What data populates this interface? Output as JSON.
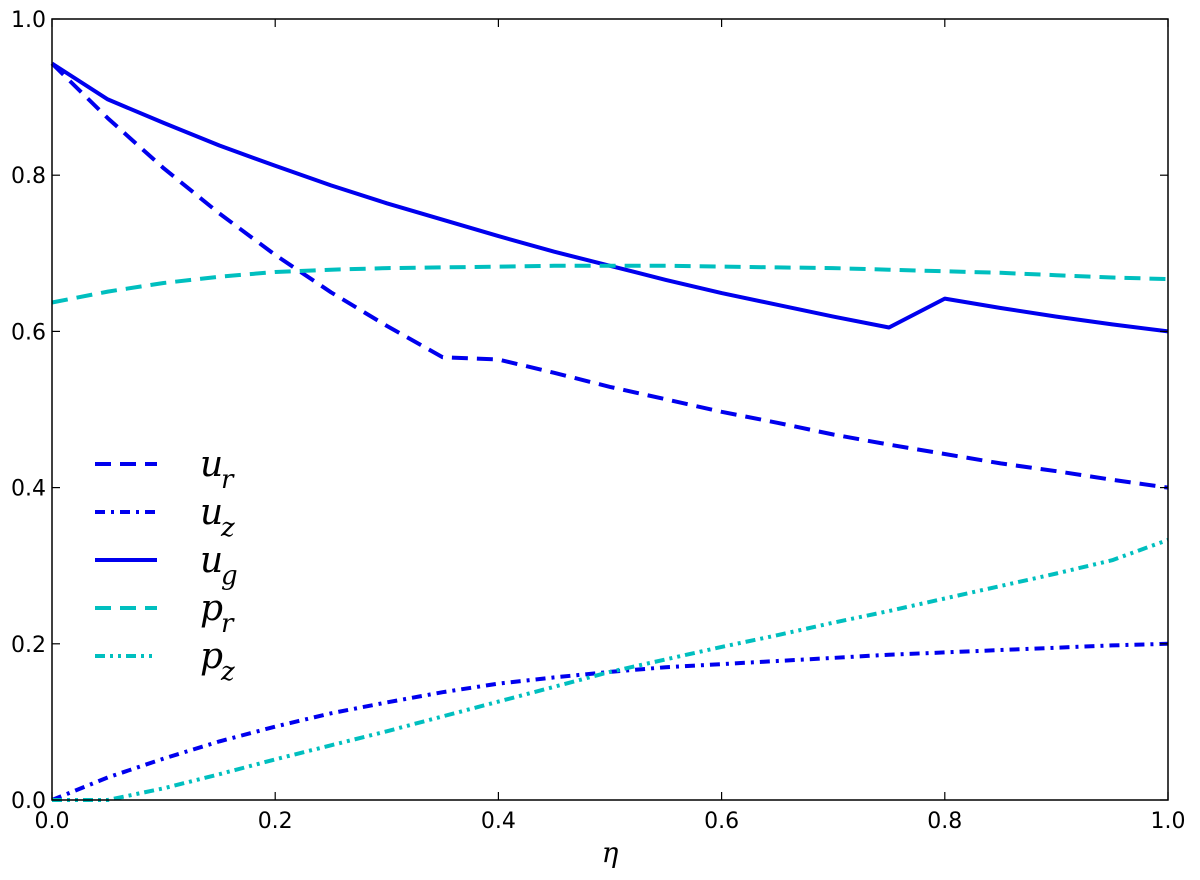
{
  "chart_data": {
    "type": "line",
    "title": "",
    "xlabel": "η",
    "ylabel": "",
    "xlim": [
      0.0,
      1.0
    ],
    "ylim": [
      0.0,
      1.0
    ],
    "xticks": [
      "0.0",
      "0.2",
      "0.4",
      "0.6",
      "0.8",
      "1.0"
    ],
    "yticks": [
      "0.0",
      "0.2",
      "0.4",
      "0.6",
      "0.8",
      "1.0"
    ],
    "grid": false,
    "legend_position": "center-left",
    "x": [
      0.0,
      0.05,
      0.1,
      0.15,
      0.2,
      0.25,
      0.3,
      0.35,
      0.4,
      0.45,
      0.5,
      0.55,
      0.6,
      0.65,
      0.7,
      0.75,
      0.8,
      0.85,
      0.9,
      0.95,
      1.0
    ],
    "series": [
      {
        "name": "u_r",
        "label_main": "u",
        "label_sub": "r",
        "color": "#0000ee",
        "style": "dashed",
        "values": [
          0.943,
          0.873,
          0.809,
          0.751,
          0.698,
          0.65,
          0.607,
          0.567,
          0.564,
          0.547,
          0.529,
          0.513,
          0.497,
          0.483,
          0.468,
          0.455,
          0.443,
          0.431,
          0.421,
          0.41,
          0.4
        ]
      },
      {
        "name": "u_z",
        "label_main": "u",
        "label_sub": "z",
        "color": "#0000ee",
        "style": "dashdot",
        "values": [
          0.0,
          0.029,
          0.053,
          0.075,
          0.094,
          0.111,
          0.125,
          0.138,
          0.149,
          0.157,
          0.164,
          0.17,
          0.174,
          0.178,
          0.182,
          0.186,
          0.189,
          0.192,
          0.195,
          0.198,
          0.2
        ]
      },
      {
        "name": "u_g",
        "label_main": "u",
        "label_sub": "g",
        "color": "#0000ee",
        "style": "solid",
        "values": [
          0.943,
          0.897,
          0.867,
          0.838,
          0.812,
          0.787,
          0.764,
          0.743,
          0.722,
          0.702,
          0.684,
          0.666,
          0.649,
          0.634,
          0.619,
          0.605,
          0.642,
          0.63,
          0.619,
          0.609,
          0.6
        ]
      },
      {
        "name": "p_r",
        "label_main": "p",
        "label_sub": "r",
        "color": "#00bfbf",
        "style": "dashed",
        "values": [
          0.637,
          0.651,
          0.662,
          0.67,
          0.676,
          0.679,
          0.681,
          0.682,
          0.683,
          0.684,
          0.684,
          0.684,
          0.683,
          0.682,
          0.681,
          0.679,
          0.677,
          0.675,
          0.672,
          0.669,
          0.667
        ]
      },
      {
        "name": "p_z",
        "label_main": "p",
        "label_sub": "z",
        "color": "#00bfbf",
        "style": "dashdotdot",
        "values": [
          0.0,
          0.0,
          0.015,
          0.033,
          0.052,
          0.07,
          0.088,
          0.107,
          0.126,
          0.145,
          0.164,
          0.18,
          0.196,
          0.211,
          0.227,
          0.242,
          0.258,
          0.274,
          0.29,
          0.307,
          0.333
        ]
      }
    ]
  }
}
